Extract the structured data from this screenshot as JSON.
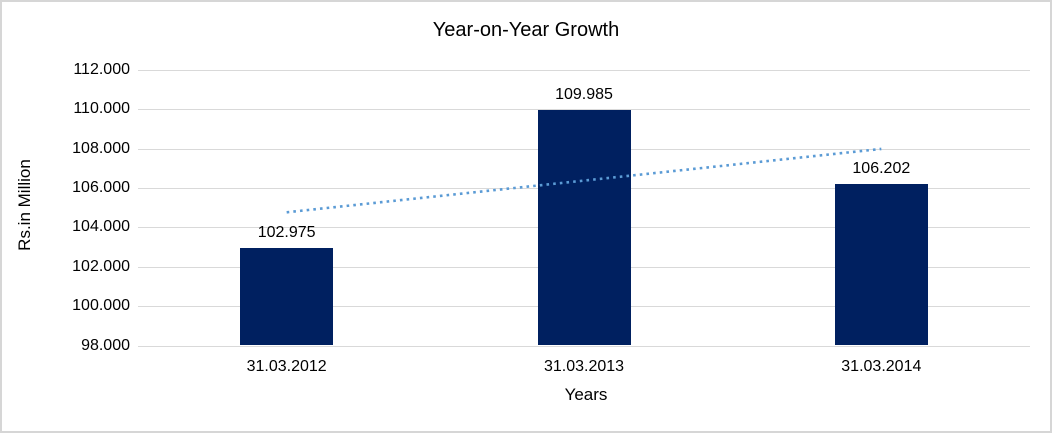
{
  "title": "Year-on-Year Growth",
  "chart_data": {
    "type": "bar",
    "title": "Year-on-Year Growth",
    "xlabel": "Years",
    "ylabel": "Rs.in Million",
    "categories": [
      "31.03.2012",
      "31.03.2013",
      "31.03.2014"
    ],
    "values": [
      102.975,
      109.985,
      106.202
    ],
    "value_labels": [
      "102.975",
      "109.985",
      "106.202"
    ],
    "ylim": [
      98,
      112
    ],
    "yticks": [
      {
        "label": "98.000",
        "value": 98
      },
      {
        "label": "100.000",
        "value": 100
      },
      {
        "label": "102.000",
        "value": 102
      },
      {
        "label": "104.000",
        "value": 104
      },
      {
        "label": "106.000",
        "value": 106
      },
      {
        "label": "108.000",
        "value": 108
      },
      {
        "label": "110.000",
        "value": 110
      },
      {
        "label": "112.000",
        "value": 112
      }
    ],
    "grid": "horizontal",
    "legend": "none",
    "bar_color": "#002060",
    "trendline": {
      "type": "linear",
      "style": "dotted",
      "color": "#5B9BD5",
      "start_value": 104.77,
      "end_value": 107.99
    }
  },
  "colors": {
    "background": "#FFFFFF",
    "frame_border": "#D6D6D6",
    "gridline": "#D9D9D9",
    "axis_line": "#D9D9D9",
    "text": "#000000"
  }
}
